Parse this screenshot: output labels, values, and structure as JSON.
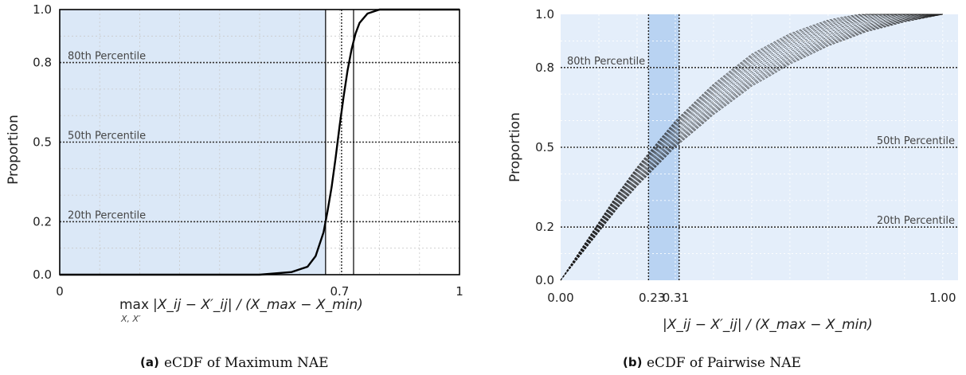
{
  "chart_data": [
    {
      "type": "line",
      "title": "eCDF of Maximum NAE",
      "caption_label": "(a)",
      "caption_text": "eCDF of Maximum NAE",
      "ylabel": "Proportion",
      "xlabel": "max_{X,X'} |X_ij − X'_ij| / (X_max − X_min)",
      "xlabel_main": "max",
      "xlabel_sub": "X, X′",
      "xlabel_rest": "|X_ij − X′_ij| / (X_max − X_min)",
      "xlim": [
        0,
        1
      ],
      "ylim": [
        0,
        1
      ],
      "xticks": [
        "0",
        "0.7",
        "1"
      ],
      "xtick_values": [
        0,
        0.7,
        1
      ],
      "yticks": [
        "0.0",
        "0.2",
        "0.5",
        "0.8",
        "1.0"
      ],
      "ytick_values": [
        0,
        0.2,
        0.5,
        0.8,
        1.0
      ],
      "percentile_labels": [
        "80th Percentile",
        "50th Percentile",
        "20th Percentile"
      ],
      "percentile_values": [
        0.8,
        0.5,
        0.2
      ],
      "vertical_lines": [
        0.665,
        0.705,
        0.735
      ],
      "shaded_region": {
        "x": [
          0,
          0.665
        ],
        "y": [
          0,
          1
        ]
      },
      "grid": true,
      "series": [
        {
          "x": [
            0.5,
            0.58,
            0.62,
            0.64,
            0.66,
            0.67,
            0.68,
            0.69,
            0.7,
            0.71,
            0.72,
            0.73,
            0.74,
            0.75,
            0.77,
            0.8,
            0.85,
            1.0
          ],
          "y": [
            0.0,
            0.01,
            0.03,
            0.07,
            0.16,
            0.24,
            0.33,
            0.44,
            0.56,
            0.67,
            0.77,
            0.85,
            0.91,
            0.95,
            0.985,
            1.0,
            1.0,
            1.0
          ]
        }
      ]
    },
    {
      "type": "line",
      "title": "eCDF of Pairwise NAE",
      "caption_label": "(b)",
      "caption_text": "eCDF of Pairwise NAE",
      "ylabel": "Proportion",
      "xlabel": "|X_ij − X'_ij| / (X_max − X_min)",
      "xlabel_rest": "|X_ij − X′_ij| / (X_max − X_min)",
      "xlim": [
        0,
        1
      ],
      "ylim": [
        0,
        1
      ],
      "xticks": [
        "0.00",
        "0.23",
        "0.31",
        "1.00"
      ],
      "xtick_values": [
        0,
        0.23,
        0.31,
        1.0
      ],
      "yticks": [
        "0.0",
        "0.2",
        "0.5",
        "0.8",
        "1.0"
      ],
      "ytick_values": [
        0,
        0.2,
        0.5,
        0.8,
        1.0
      ],
      "percentile_labels": [
        "80th Percentile",
        "50th Percentile",
        "20th Percentile"
      ],
      "percentile_values": [
        0.8,
        0.5,
        0.2
      ],
      "vertical_lines": [
        0.23,
        0.31
      ],
      "shaded_region": {
        "x": [
          0.23,
          0.31
        ],
        "y": [
          0,
          1
        ]
      },
      "grid": true,
      "curve_count": 20,
      "series": [
        {
          "x": [
            0.0,
            0.05,
            0.1,
            0.15,
            0.2,
            0.25,
            0.3,
            0.4,
            0.5,
            0.6,
            0.7,
            0.8,
            0.9,
            1.0
          ],
          "y": [
            0.0,
            0.1,
            0.2,
            0.3,
            0.39,
            0.47,
            0.55,
            0.68,
            0.79,
            0.87,
            0.93,
            0.97,
            0.99,
            1.0
          ]
        }
      ]
    }
  ]
}
